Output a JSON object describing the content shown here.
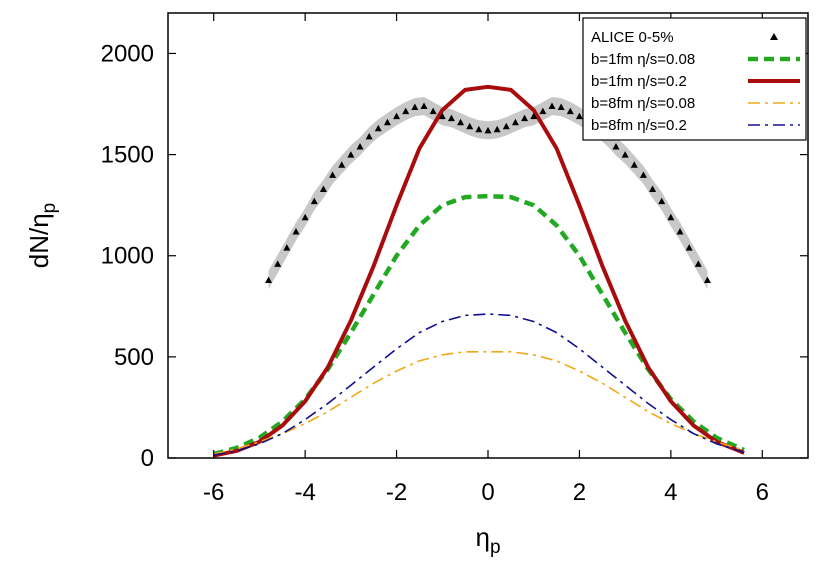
{
  "chart_data": {
    "type": "line",
    "title": "",
    "xlabel": "η",
    "xlabel_sub": "p",
    "ylabel": "dN/η",
    "ylabel_sub": "p",
    "xlim": [
      -7,
      7
    ],
    "ylim": [
      0,
      2200
    ],
    "xticks": [
      -6,
      -4,
      -2,
      0,
      2,
      4,
      6
    ],
    "xtick_labels": [
      "-6",
      "-4",
      "-2",
      "0",
      "2",
      "4",
      "6"
    ],
    "yticks": [
      0,
      500,
      1000,
      1500,
      2000
    ],
    "ytick_labels": [
      "0",
      "500",
      "1000",
      "1500",
      "2000"
    ],
    "grid": false,
    "legend_position": "top-right",
    "series": [
      {
        "name": "ALICE 0-5%",
        "style": "markers",
        "color": "#000000",
        "band_color": "#c8c8c8",
        "x": [
          -4.8,
          -4.6,
          -4.4,
          -4.2,
          -4.0,
          -3.8,
          -3.6,
          -3.4,
          -3.2,
          -3.0,
          -2.8,
          -2.6,
          -2.4,
          -2.2,
          -2.0,
          -1.8,
          -1.6,
          -1.4,
          -1.2,
          -1.0,
          -0.8,
          -0.6,
          -0.4,
          -0.2,
          0.0,
          0.2,
          0.4,
          0.6,
          0.8,
          1.0,
          1.2,
          1.4,
          1.6,
          1.8,
          2.0,
          2.2,
          2.4,
          2.6,
          2.8,
          3.0,
          3.2,
          3.4,
          3.6,
          3.8,
          4.0,
          4.2,
          4.4,
          4.6,
          4.8
        ],
        "y": [
          880,
          960,
          1040,
          1120,
          1190,
          1270,
          1330,
          1400,
          1450,
          1500,
          1540,
          1590,
          1630,
          1660,
          1690,
          1715,
          1735,
          1740,
          1715,
          1690,
          1680,
          1660,
          1640,
          1625,
          1620,
          1625,
          1640,
          1660,
          1680,
          1690,
          1715,
          1740,
          1735,
          1715,
          1690,
          1660,
          1630,
          1590,
          1540,
          1500,
          1450,
          1400,
          1330,
          1270,
          1190,
          1120,
          1040,
          960,
          880
        ]
      },
      {
        "name": "b=1fm η/s=0.08",
        "style": "dashed",
        "color": "#22a822",
        "x": [
          -6.0,
          -5.5,
          -5.0,
          -4.5,
          -4.0,
          -3.5,
          -3.0,
          -2.5,
          -2.0,
          -1.5,
          -1.0,
          -0.5,
          0.0,
          0.5,
          1.0,
          1.5,
          2.0,
          2.5,
          3.0,
          3.5,
          4.0,
          4.5,
          5.0,
          5.5,
          5.6
        ],
        "y": [
          20,
          50,
          100,
          180,
          290,
          440,
          620,
          810,
          1000,
          1150,
          1250,
          1290,
          1295,
          1290,
          1250,
          1150,
          1000,
          810,
          620,
          440,
          290,
          180,
          100,
          50,
          40
        ]
      },
      {
        "name": "b=1fm η/s=0.2",
        "style": "solid",
        "color": "#a80c0c",
        "x": [
          -6.0,
          -5.5,
          -5.0,
          -4.5,
          -4.0,
          -3.5,
          -3.0,
          -2.5,
          -2.0,
          -1.5,
          -1.0,
          -0.5,
          0.0,
          0.5,
          1.0,
          1.5,
          2.0,
          2.5,
          3.0,
          3.5,
          4.0,
          4.5,
          5.0,
          5.5,
          5.6
        ],
        "y": [
          12,
          35,
          80,
          160,
          280,
          450,
          680,
          950,
          1250,
          1530,
          1720,
          1820,
          1835,
          1820,
          1720,
          1530,
          1250,
          950,
          680,
          450,
          280,
          160,
          80,
          35,
          25
        ]
      },
      {
        "name": "b=8fm η/s=0.08",
        "style": "dash-dot",
        "color": "#f0a818",
        "x": [
          -6.0,
          -5.5,
          -5.0,
          -4.5,
          -4.0,
          -3.5,
          -3.0,
          -2.5,
          -2.0,
          -1.5,
          -1.0,
          -0.5,
          0.0,
          0.5,
          1.0,
          1.5,
          2.0,
          2.5,
          3.0,
          3.5,
          4.0,
          4.5,
          5.0,
          5.5,
          5.6
        ],
        "y": [
          20,
          45,
          80,
          120,
          170,
          230,
          300,
          370,
          430,
          480,
          510,
          525,
          525,
          525,
          510,
          480,
          430,
          370,
          300,
          230,
          170,
          120,
          80,
          45,
          40
        ]
      },
      {
        "name": "b=8fm η/s=0.2",
        "style": "dash-dot",
        "color": "#101090",
        "x": [
          -6.0,
          -5.5,
          -5.0,
          -4.5,
          -4.0,
          -3.5,
          -3.0,
          -2.5,
          -2.0,
          -1.5,
          -1.0,
          -0.5,
          0.0,
          0.5,
          1.0,
          1.5,
          2.0,
          2.5,
          3.0,
          3.5,
          4.0,
          4.5,
          5.0,
          5.5,
          5.6
        ],
        "y": [
          15,
          35,
          70,
          120,
          190,
          270,
          360,
          450,
          540,
          620,
          675,
          705,
          712,
          705,
          675,
          620,
          540,
          450,
          360,
          270,
          190,
          120,
          70,
          35,
          25
        ]
      }
    ]
  }
}
